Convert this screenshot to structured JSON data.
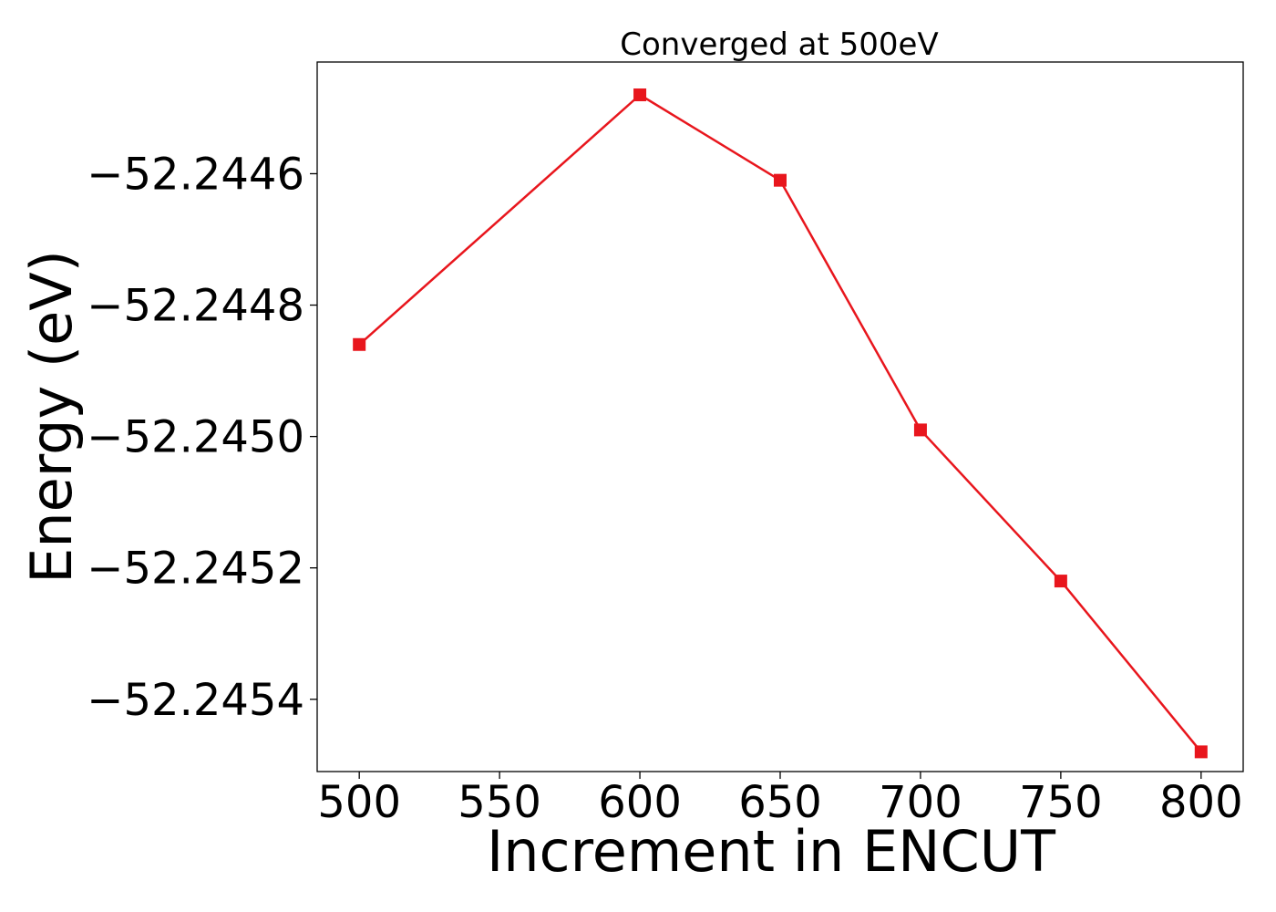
{
  "chart_data": {
    "type": "line",
    "title": "Converged at 500eV",
    "xlabel": "Increment in ENCUT",
    "ylabel": "Energy (eV)",
    "x": [
      500,
      600,
      650,
      700,
      750,
      800
    ],
    "series": [
      {
        "values": [
          -52.24486,
          -52.24448,
          -52.24461,
          -52.24499,
          -52.24522,
          -52.24548
        ],
        "color": "#e8161d",
        "marker": "square"
      }
    ],
    "xlim": [
      485,
      815
    ],
    "ylim": [
      -52.24551,
      -52.24443
    ],
    "xticks": [
      500,
      550,
      600,
      650,
      700,
      750,
      800
    ],
    "xtick_labels": [
      "500",
      "550",
      "600",
      "650",
      "700",
      "750",
      "800"
    ],
    "yticks": [
      -52.2446,
      -52.2448,
      -52.245,
      -52.2452,
      -52.2454
    ],
    "ytick_labels": [
      "−52.2446",
      "−52.2448",
      "−52.2450",
      "−52.2452",
      "−52.2454"
    ],
    "grid": false,
    "legend": false
  }
}
